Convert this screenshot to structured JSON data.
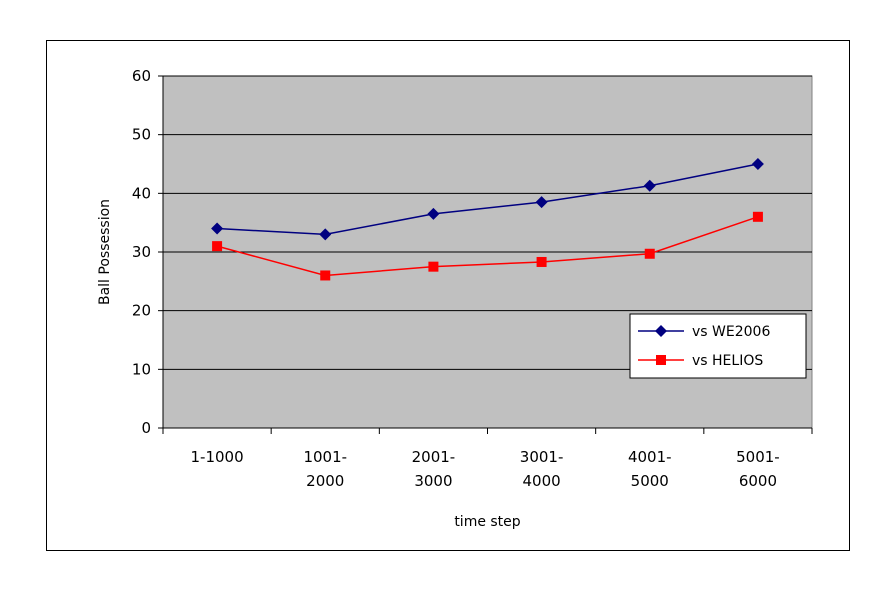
{
  "chart_data": {
    "type": "line",
    "title": "",
    "xlabel": "time step",
    "ylabel": "Ball Possession",
    "ylim": [
      0,
      60
    ],
    "yticks": [
      0,
      10,
      20,
      30,
      40,
      50,
      60
    ],
    "categories": [
      [
        "1-1000"
      ],
      [
        "1001-",
        "2000"
      ],
      [
        "2001-",
        "3000"
      ],
      [
        "3001-",
        "4000"
      ],
      [
        "4001-",
        "5000"
      ],
      [
        "5001-",
        "6000"
      ]
    ],
    "series": [
      {
        "name": "vs WE2006",
        "values": [
          34,
          33,
          36.5,
          38.5,
          41.3,
          45
        ],
        "color": "#000080",
        "marker": "diamond"
      },
      {
        "name": "vs HELIOS",
        "values": [
          31,
          26,
          27.5,
          28.3,
          29.7,
          36
        ],
        "color": "#ff0000",
        "marker": "square"
      }
    ],
    "grid": true,
    "plot_background": "#c0c0c0",
    "legend_position": "bottom-right"
  }
}
